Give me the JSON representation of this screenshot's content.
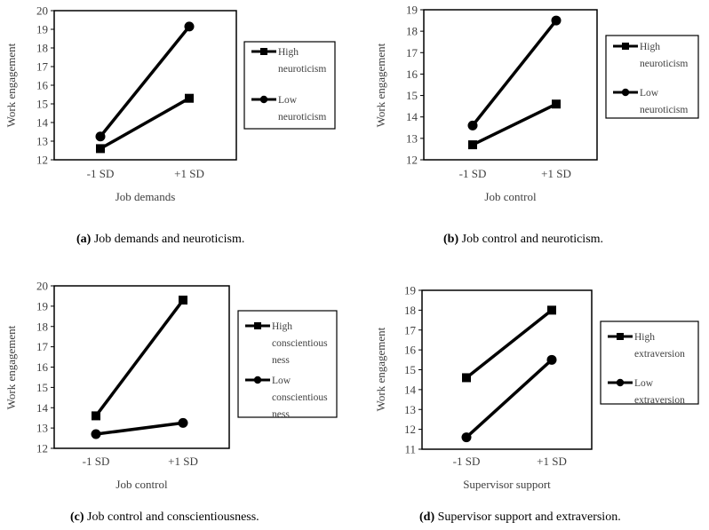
{
  "chart_data": [
    {
      "type": "line",
      "panel": "a",
      "ylabel": "Work engagement",
      "xlabel": "Job demands",
      "categories": [
        "-1 SD",
        "+1 SD"
      ],
      "ylim": [
        12,
        20
      ],
      "yticks": [
        12,
        13,
        14,
        15,
        16,
        17,
        18,
        19,
        20
      ],
      "series": [
        {
          "name": "High neuroticism",
          "legend_lines": [
            "High",
            "neuroticism"
          ],
          "marker": "square",
          "values": [
            12.6,
            15.3
          ]
        },
        {
          "name": "Low neuroticism",
          "legend_lines": [
            "Low",
            "neuroticism"
          ],
          "marker": "circle",
          "values": [
            13.25,
            19.15
          ]
        }
      ],
      "caption_label": "(a)",
      "caption_text": "Job demands and neuroticism."
    },
    {
      "type": "line",
      "panel": "b",
      "ylabel": "Work engagement",
      "xlabel": "Job control",
      "categories": [
        "-1 SD",
        "+1 SD"
      ],
      "ylim": [
        12,
        19
      ],
      "yticks": [
        12,
        13,
        14,
        15,
        16,
        17,
        18,
        19
      ],
      "series": [
        {
          "name": "High neuroticism",
          "legend_lines": [
            "High",
            "neuroticism"
          ],
          "marker": "square",
          "values": [
            12.7,
            14.6
          ]
        },
        {
          "name": "Low neuroticism",
          "legend_lines": [
            "Low",
            "neuroticism"
          ],
          "marker": "circle",
          "values": [
            13.6,
            18.5
          ]
        }
      ],
      "caption_label": "(b)",
      "caption_text": "Job control and neuroticism."
    },
    {
      "type": "line",
      "panel": "c",
      "ylabel": "Work engagement",
      "xlabel": "Job control",
      "categories": [
        "-1 SD",
        "+1 SD"
      ],
      "ylim": [
        12,
        20
      ],
      "yticks": [
        12,
        13,
        14,
        15,
        16,
        17,
        18,
        19,
        20
      ],
      "series": [
        {
          "name": "High conscientiousness",
          "legend_lines": [
            "High",
            "conscientious",
            "ness"
          ],
          "marker": "square",
          "values": [
            13.6,
            19.3
          ]
        },
        {
          "name": "Low conscientiousness",
          "legend_lines": [
            "Low",
            "conscientious",
            "ness"
          ],
          "marker": "circle",
          "values": [
            12.7,
            13.25
          ]
        }
      ],
      "caption_label": "(c)",
      "caption_text": "Job control and conscientiousness."
    },
    {
      "type": "line",
      "panel": "d",
      "ylabel": "Work engagement",
      "xlabel": "Supervisor support",
      "categories": [
        "-1 SD",
        "+1 SD"
      ],
      "ylim": [
        11,
        19
      ],
      "yticks": [
        11,
        12,
        13,
        14,
        15,
        16,
        17,
        18,
        19
      ],
      "series": [
        {
          "name": "High extraversion",
          "legend_lines": [
            "High",
            "extraversion"
          ],
          "marker": "square",
          "values": [
            14.6,
            18.0
          ]
        },
        {
          "name": "Low extraversion",
          "legend_lines": [
            "Low",
            "extraversion"
          ],
          "marker": "circle",
          "values": [
            11.6,
            15.5
          ]
        }
      ],
      "caption_label": "(d)",
      "caption_text": "Supervisor support and extraversion."
    }
  ]
}
